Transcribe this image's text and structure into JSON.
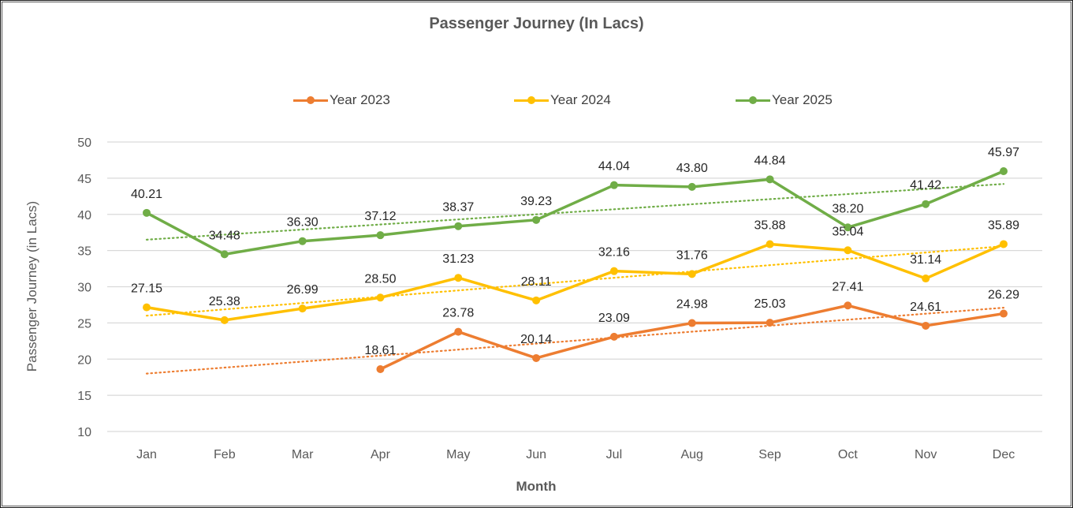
{
  "chart_data": {
    "type": "line",
    "title": "Passenger Journey (In Lacs)",
    "xlabel": "Month",
    "ylabel": "Passenger Journey (in Lacs)",
    "ylim": [
      10,
      50
    ],
    "yticks": [
      "10",
      "15",
      "20",
      "25",
      "30",
      "35",
      "40",
      "45",
      "50"
    ],
    "ytick_values": [
      10,
      15,
      20,
      25,
      30,
      35,
      40,
      45,
      50
    ],
    "grid": true,
    "legend_position": "top",
    "categories": [
      "Jan",
      "Feb",
      "Mar",
      "Apr",
      "May",
      "Jun",
      "Jul",
      "Aug",
      "Sep",
      "Oct",
      "Nov",
      "Dec"
    ],
    "series": [
      {
        "name": "Year 2023",
        "color": "#ED7D31",
        "values": [
          null,
          null,
          null,
          18.61,
          23.78,
          20.14,
          23.09,
          24.98,
          25.03,
          27.41,
          24.61,
          26.29
        ],
        "labels": [
          "",
          "",
          "",
          "18.61",
          "23.78",
          "20.14",
          "23.09",
          "24.98",
          "25.03",
          "27.41",
          "24.61",
          "26.29"
        ],
        "trendline": {
          "type": "linear",
          "start": 18.0,
          "end": 27.1
        }
      },
      {
        "name": "Year 2024",
        "color": "#FFC000",
        "values": [
          27.15,
          25.38,
          26.99,
          28.5,
          31.23,
          28.11,
          32.16,
          31.76,
          35.88,
          35.04,
          31.14,
          35.89
        ],
        "labels": [
          "27.15",
          "25.38",
          "26.99",
          "28.50",
          "31.23",
          "28.11",
          "32.16",
          "31.76",
          "35.88",
          "35.04",
          "31.14",
          "35.89"
        ],
        "trendline": {
          "type": "linear",
          "start": 26.0,
          "end": 35.6
        }
      },
      {
        "name": "Year 2025",
        "color": "#70AD47",
        "values": [
          40.21,
          34.48,
          36.3,
          37.12,
          38.37,
          39.23,
          44.04,
          43.8,
          44.84,
          38.2,
          41.42,
          45.97
        ],
        "labels": [
          "40.21",
          "34.48",
          "36.30",
          "37.12",
          "38.37",
          "39.23",
          "44.04",
          "43.80",
          "44.84",
          "38.20",
          "41.42",
          "45.97"
        ],
        "trendline": {
          "type": "linear",
          "start": 36.5,
          "end": 44.2
        }
      }
    ]
  }
}
